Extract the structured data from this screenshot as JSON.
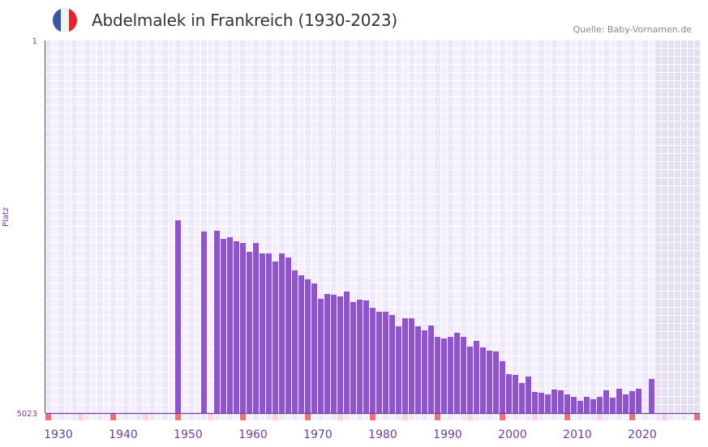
{
  "title": "Abdelmalek in Frankreich (1930-2023)",
  "source": "Quelle: Baby-Vornamen.de",
  "flag_icon": "france-flag-icon",
  "colors": {
    "bar": "#8e55c7",
    "axis": "#6a3fa0",
    "cell_a": "#f3f0fb",
    "cell_b": "#ede8f8",
    "future": "#e3dfee",
    "marker_decade": "#e8737a",
    "marker_half": "#f5d5df"
  },
  "chart_data": {
    "type": "bar",
    "title": "Abdelmalek in Frankreich (1930-2023)",
    "xlabel": "",
    "ylabel": "Platz",
    "ylim": [
      1,
      5023
    ],
    "y_inverted": true,
    "xlim": [
      1928,
      2028
    ],
    "ytick_labels": [
      "1",
      "5023"
    ],
    "xtick_labels": [
      "1930",
      "1940",
      "1950",
      "1960",
      "1970",
      "1980",
      "1990",
      "2000",
      "2010",
      "2020"
    ],
    "future_from": 2022,
    "grid": true,
    "categories": [
      1948,
      1952,
      1954,
      1955,
      1956,
      1957,
      1958,
      1959,
      1960,
      1961,
      1962,
      1963,
      1964,
      1965,
      1966,
      1967,
      1968,
      1969,
      1970,
      1971,
      1972,
      1973,
      1974,
      1975,
      1976,
      1977,
      1978,
      1979,
      1980,
      1981,
      1982,
      1983,
      1984,
      1985,
      1986,
      1987,
      1988,
      1989,
      1990,
      1991,
      1992,
      1993,
      1994,
      1995,
      1996,
      1997,
      1998,
      1999,
      2000,
      2001,
      2002,
      2003,
      2004,
      2005,
      2006,
      2007,
      2008,
      2009,
      2010,
      2011,
      2012,
      2013,
      2014,
      2015,
      2016,
      2017,
      2018,
      2019,
      2021
    ],
    "values": [
      2425,
      2577,
      2566,
      2676,
      2654,
      2708,
      2730,
      2850,
      2730,
      2872,
      2872,
      2981,
      2872,
      2927,
      3101,
      3167,
      3221,
      3276,
      3484,
      3418,
      3429,
      3451,
      3385,
      3527,
      3494,
      3505,
      3604,
      3658,
      3658,
      3702,
      3855,
      3746,
      3746,
      3855,
      3909,
      3844,
      3997,
      4019,
      3997,
      3942,
      3997,
      4128,
      4051,
      4139,
      4182,
      4193,
      4324,
      4499,
      4510,
      4619,
      4531,
      4739,
      4750,
      4772,
      4706,
      4717,
      4772,
      4805,
      4859,
      4805,
      4837,
      4805,
      4717,
      4816,
      4695,
      4772,
      4728,
      4695,
      4564
    ]
  }
}
